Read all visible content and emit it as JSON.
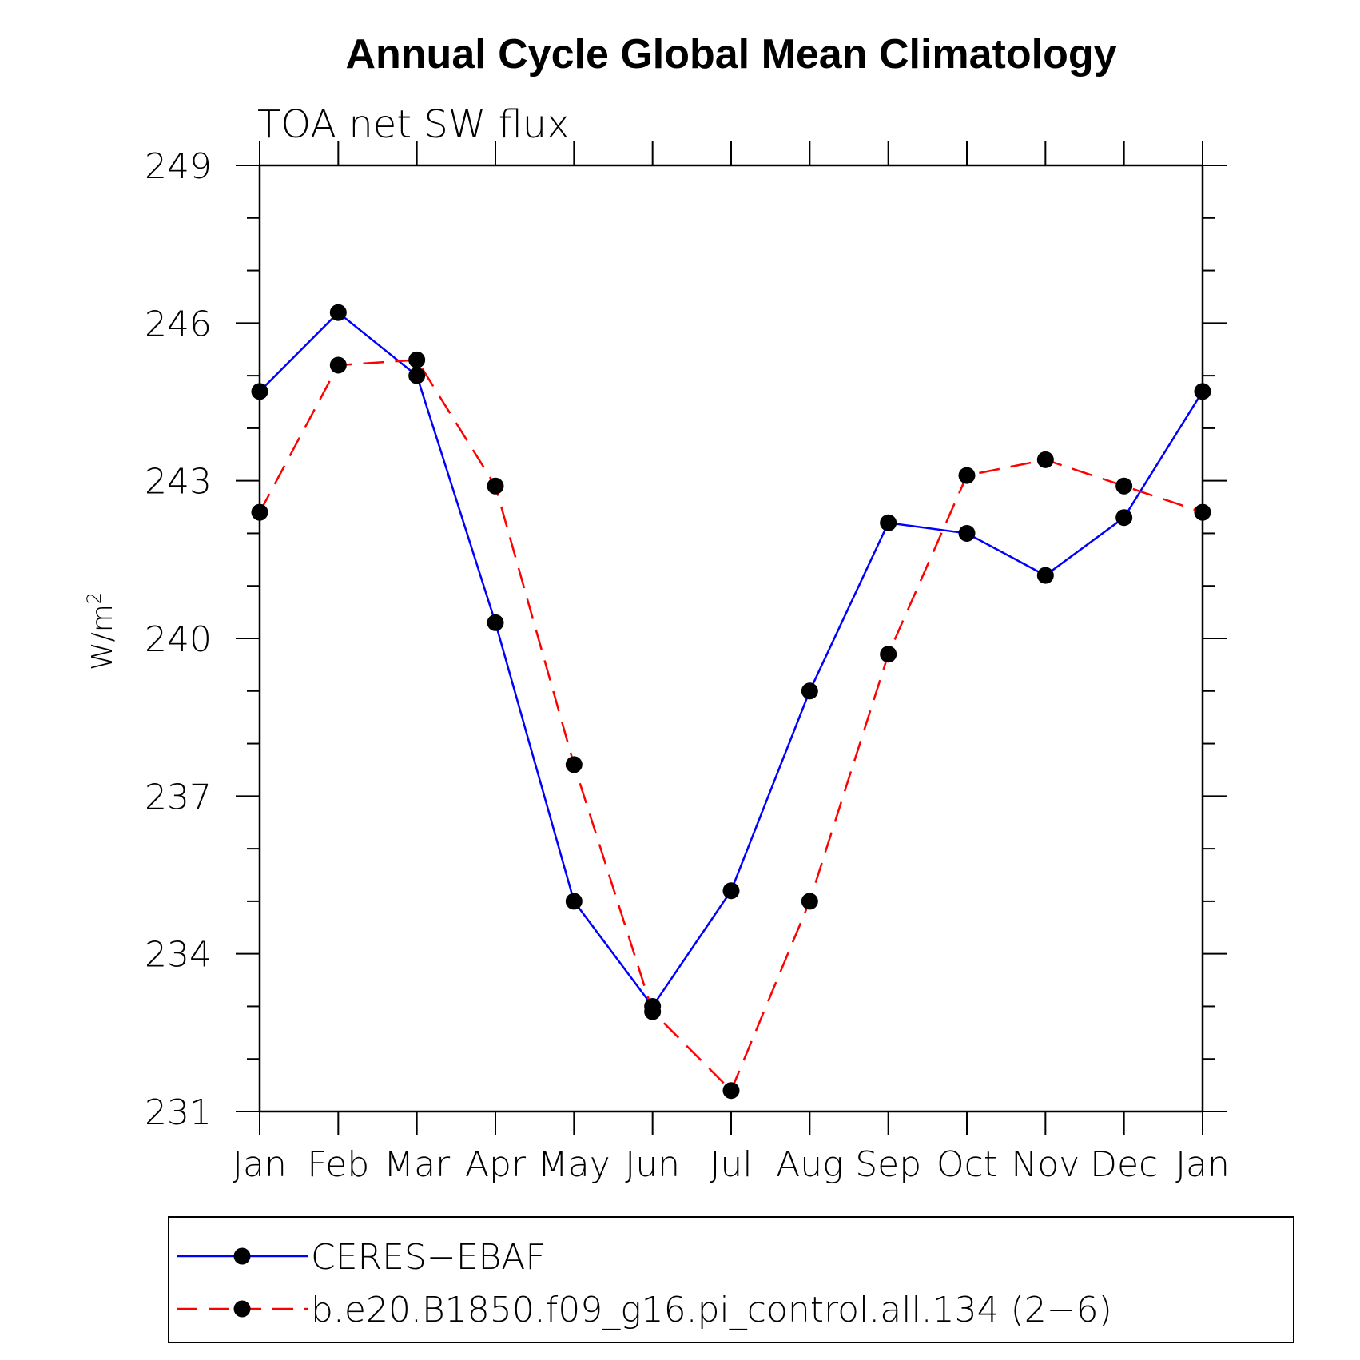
{
  "chart_data": {
    "type": "line",
    "title": "Annual Cycle Global Mean Climatology",
    "subtitle": "TOA net SW flux",
    "ylabel": "W/m",
    "ylabel_sup": "2",
    "ylim": [
      231,
      249
    ],
    "yticks": [
      "231",
      "234",
      "237",
      "240",
      "243",
      "246",
      "249"
    ],
    "categories": [
      "Jan",
      "Feb",
      "Mar",
      "Apr",
      "May",
      "Jun",
      "Jul",
      "Aug",
      "Sep",
      "Oct",
      "Nov",
      "Dec",
      "Jan"
    ],
    "grid": false,
    "legend_position": "bottom",
    "series": [
      {
        "name": "CERES−EBAF",
        "color": "#0000ff",
        "style": "solid",
        "marker": "filled-circle",
        "values": [
          244.7,
          246.2,
          245.0,
          240.3,
          235.0,
          233.0,
          235.2,
          239.0,
          242.2,
          242.0,
          241.2,
          242.3,
          244.7
        ]
      },
      {
        "name": "b.e20.B1850.f09_g16.pi_control.all.134 (2−6)",
        "color": "#ff0000",
        "style": "dashed",
        "marker": "filled-circle",
        "values": [
          242.4,
          245.2,
          245.3,
          242.9,
          237.6,
          232.9,
          231.4,
          235.0,
          239.7,
          243.1,
          243.4,
          242.9,
          242.4
        ]
      }
    ]
  }
}
